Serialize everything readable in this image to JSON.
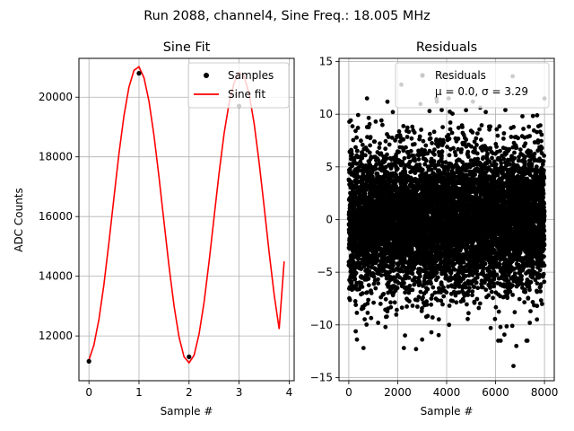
{
  "suptitle": "Run 2088, channel4, Sine Freq.: 18.005 MHz",
  "chart_data": [
    {
      "type": "line",
      "title": "Sine Fit",
      "xlabel": "Sample #",
      "ylabel": "ADC Counts",
      "xlim": [
        -0.2,
        4.1
      ],
      "ylim": [
        10500,
        21300
      ],
      "xticks": [
        0,
        1,
        2,
        3,
        4
      ],
      "yticks": [
        12000,
        14000,
        16000,
        18000,
        20000
      ],
      "grid": true,
      "legend": {
        "location": "upper right",
        "entries": [
          "Samples",
          "Sine fit"
        ]
      },
      "series": [
        {
          "name": "Samples",
          "style": "dots",
          "color": "#000000",
          "x": [
            0,
            1,
            2,
            3
          ],
          "y": [
            11150,
            20800,
            11300,
            19700
          ]
        },
        {
          "name": "Sine fit",
          "style": "line",
          "color": "#ff0000",
          "x": [
            0.0,
            0.1,
            0.2,
            0.3,
            0.4,
            0.5,
            0.6,
            0.7,
            0.8,
            0.9,
            1.0,
            1.1,
            1.2,
            1.3,
            1.4,
            1.5,
            1.6,
            1.7,
            1.8,
            1.9,
            2.0,
            2.1,
            2.2,
            2.3,
            2.4,
            2.5,
            2.6,
            2.7,
            2.8,
            2.9,
            3.0,
            3.1,
            3.2,
            3.3,
            3.4,
            3.5,
            3.6,
            3.7,
            3.8,
            3.9
          ],
          "y": [
            11190,
            11700,
            12560,
            13730,
            15140,
            16640,
            18110,
            19380,
            20340,
            20900,
            21020,
            20650,
            19860,
            18710,
            17320,
            15820,
            14330,
            13010,
            11960,
            11300,
            11100,
            11350,
            12060,
            13130,
            14490,
            15980,
            17460,
            18780,
            19800,
            20480,
            20830,
            20700,
            20110,
            19120,
            17810,
            16330,
            14800,
            13390,
            12230,
            14500
          ]
        }
      ]
    },
    {
      "type": "scatter",
      "title": "Residuals",
      "xlabel": "Sample #",
      "ylabel": "",
      "xlim": [
        -400,
        8400
      ],
      "ylim": [
        -15.3,
        15.3
      ],
      "xticks": [
        0,
        2000,
        4000,
        6000,
        8000
      ],
      "yticks": [
        -15,
        -10,
        -5,
        0,
        5,
        10,
        15
      ],
      "grid": true,
      "legend": {
        "location": "upper right",
        "entries": [
          "Residuals",
          "μ = 0.0, σ = 3.29"
        ]
      },
      "summary": {
        "mean": 0.0,
        "sigma": 3.29,
        "n_points": 8000,
        "x_range": [
          0,
          7999
        ]
      },
      "series": [
        {
          "name": "Residuals",
          "color": "#000000",
          "note": "8000 points, approx. normal distribution with mean 0.0 and sigma 3.29",
          "outliers": [
            {
              "x": 2150,
              "y": 12.8
            },
            {
              "x": 6700,
              "y": 13.6
            },
            {
              "x": 6730,
              "y": -13.9
            },
            {
              "x": 600,
              "y": -12.2
            },
            {
              "x": 2250,
              "y": -12.2
            },
            {
              "x": 2750,
              "y": -12.3
            },
            {
              "x": 6850,
              "y": -12.0
            },
            {
              "x": 1100,
              "y": 9.3
            },
            {
              "x": 1800,
              "y": 10.2
            },
            {
              "x": 3300,
              "y": 10.3
            },
            {
              "x": 3800,
              "y": 10.4
            },
            {
              "x": 5600,
              "y": 10.2
            },
            {
              "x": 6400,
              "y": 10.4
            },
            {
              "x": 7100,
              "y": 9.8
            },
            {
              "x": 7700,
              "y": 9.9
            },
            {
              "x": 1500,
              "y": -10.2
            },
            {
              "x": 2300,
              "y": -11.0
            },
            {
              "x": 4100,
              "y": -10.0
            },
            {
              "x": 5800,
              "y": -10.3
            },
            {
              "x": 6200,
              "y": -10.2
            },
            {
              "x": 7400,
              "y": -9.8
            },
            {
              "x": 3000,
              "y": -11.4
            },
            {
              "x": 1200,
              "y": -9.8
            },
            {
              "x": 3600,
              "y": 11.2
            }
          ]
        }
      ]
    }
  ]
}
